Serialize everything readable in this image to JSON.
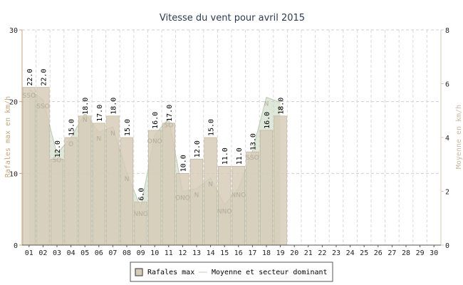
{
  "chart_data": {
    "type": "bar",
    "title": "Vitesse du vent pour avril 2015",
    "ylabel": "Rafales max en km/h",
    "y2label": "Moyenne en km/h",
    "ylim": [
      0,
      30
    ],
    "y2lim": [
      0,
      8
    ],
    "yticks": [
      "0",
      "10",
      "20",
      "30"
    ],
    "y2ticks": [
      "0",
      "2",
      "4",
      "6",
      "8"
    ],
    "grid": true,
    "legend_position": "bottom-center",
    "categories": [
      "01",
      "02",
      "03",
      "04",
      "05",
      "06",
      "07",
      "08",
      "09",
      "10",
      "11",
      "12",
      "13",
      "14",
      "15",
      "16",
      "17",
      "18",
      "19",
      "20",
      "21",
      "22",
      "23",
      "24",
      "25",
      "26",
      "27",
      "28",
      "29",
      "30"
    ],
    "series": [
      {
        "name": "Rafales max",
        "type": "bar",
        "axis": "left",
        "color": "#d6cbb6",
        "values": [
          22,
          22,
          12,
          15,
          18,
          17,
          18,
          15,
          6,
          16,
          17,
          10,
          12,
          15,
          11,
          11,
          13,
          16,
          18,
          null,
          null,
          null,
          null,
          null,
          null,
          null,
          null,
          null,
          null,
          null
        ],
        "labels": [
          "22.0",
          "22.0",
          "12.0",
          "15.0",
          "18.0",
          "17.0",
          "18.0",
          "15.0",
          "6.0",
          "16.0",
          "17.0",
          "10.0",
          "12.0",
          "15.0",
          "11.0",
          "11.0",
          "13.0",
          "16.0",
          "18.0",
          "",
          "",
          "",
          "",
          "",
          "",
          "",
          "",
          "",
          "",
          ""
        ]
      },
      {
        "name": "Moyenne et secteur dominant",
        "type": "area",
        "axis": "right",
        "color": "#c2d4ba",
        "values": [
          5.8,
          5.4,
          3.4,
          4.0,
          4.9,
          4.2,
          4.4,
          2.7,
          1.4,
          4.1,
          4.7,
          2.0,
          2.1,
          2.5,
          1.5,
          2.1,
          3.5,
          5.5,
          5.3,
          null,
          null,
          null,
          null,
          null,
          null,
          null,
          null,
          null,
          null,
          null
        ],
        "directions": [
          "SSO",
          "SSO",
          "SO",
          "O",
          "N",
          "N",
          "N",
          "N",
          "NNO",
          "ONO",
          "SO",
          "ONO",
          "N",
          "N",
          "NNO",
          "NNO",
          "SSO",
          "N",
          "N",
          "",
          "",
          "",
          "",
          "",
          "",
          "",
          "",
          "",
          "",
          ""
        ]
      }
    ]
  }
}
